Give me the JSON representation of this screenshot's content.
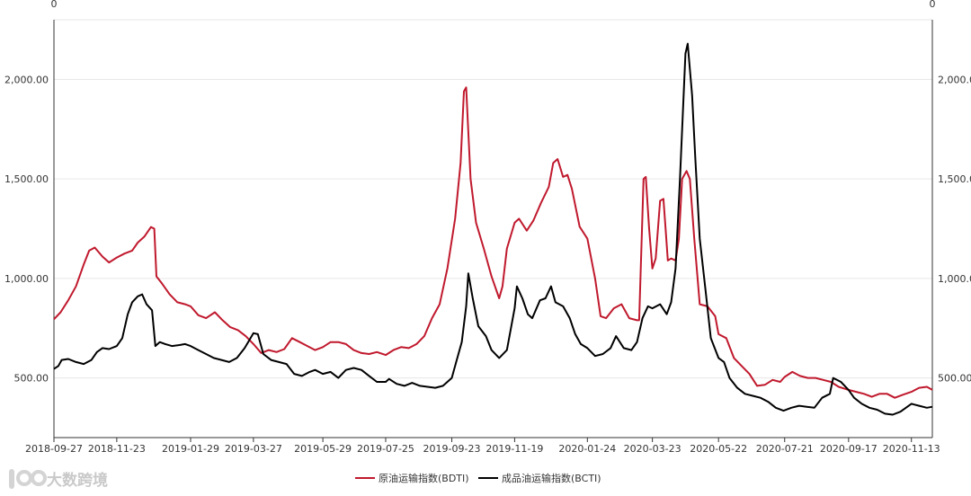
{
  "chart_data": {
    "type": "line",
    "title": "",
    "top_labels": {
      "left": "0",
      "right": "0"
    },
    "ylim": [
      200,
      2300
    ],
    "yticks": [
      {
        "value": 500,
        "label": "500.00"
      },
      {
        "value": 1000,
        "label": "1,000.00"
      },
      {
        "value": 1500,
        "label": "1,500.00"
      },
      {
        "value": 2000,
        "label": "2,000.00"
      }
    ],
    "xlim": [
      "2018-09-27",
      "2020-12-02"
    ],
    "xticks": [
      "2018-09-27",
      "2018-11-23",
      "2019-01-29",
      "2019-03-27",
      "2019-05-29",
      "2019-07-25",
      "2019-09-23",
      "2019-11-19",
      "2020-01-24",
      "2020-03-23",
      "2020-05-22",
      "2020-07-21",
      "2020-09-17",
      "2020-11-13"
    ],
    "grid": true,
    "legend_position": "bottom-center",
    "series": [
      {
        "name": "原油运输指数(BDTI)",
        "color": "#c0192d",
        "points": [
          [
            "2018-09-27",
            795
          ],
          [
            "2018-10-03",
            830
          ],
          [
            "2018-10-10",
            890
          ],
          [
            "2018-10-17",
            960
          ],
          [
            "2018-10-24",
            1070
          ],
          [
            "2018-10-29",
            1140
          ],
          [
            "2018-11-03",
            1155
          ],
          [
            "2018-11-10",
            1110
          ],
          [
            "2018-11-16",
            1080
          ],
          [
            "2018-11-23",
            1105
          ],
          [
            "2018-11-30",
            1125
          ],
          [
            "2018-12-07",
            1140
          ],
          [
            "2018-12-12",
            1180
          ],
          [
            "2018-12-18",
            1210
          ],
          [
            "2018-12-24",
            1258
          ],
          [
            "2018-12-27",
            1250
          ],
          [
            "2018-12-29",
            1010
          ],
          [
            "2019-01-03",
            975
          ],
          [
            "2019-01-10",
            920
          ],
          [
            "2019-01-17",
            880
          ],
          [
            "2019-01-24",
            870
          ],
          [
            "2019-01-29",
            860
          ],
          [
            "2019-02-05",
            815
          ],
          [
            "2019-02-12",
            800
          ],
          [
            "2019-02-20",
            830
          ],
          [
            "2019-02-27",
            790
          ],
          [
            "2019-03-06",
            755
          ],
          [
            "2019-03-13",
            740
          ],
          [
            "2019-03-20",
            710
          ],
          [
            "2019-03-27",
            670
          ],
          [
            "2019-04-03",
            625
          ],
          [
            "2019-04-10",
            640
          ],
          [
            "2019-04-17",
            630
          ],
          [
            "2019-04-24",
            645
          ],
          [
            "2019-05-01",
            700
          ],
          [
            "2019-05-08",
            680
          ],
          [
            "2019-05-15",
            660
          ],
          [
            "2019-05-22",
            640
          ],
          [
            "2019-05-29",
            655
          ],
          [
            "2019-06-05",
            680
          ],
          [
            "2019-06-12",
            680
          ],
          [
            "2019-06-19",
            670
          ],
          [
            "2019-06-26",
            640
          ],
          [
            "2019-07-03",
            625
          ],
          [
            "2019-07-10",
            620
          ],
          [
            "2019-07-17",
            630
          ],
          [
            "2019-07-25",
            615
          ],
          [
            "2019-08-01",
            640
          ],
          [
            "2019-08-08",
            655
          ],
          [
            "2019-08-15",
            650
          ],
          [
            "2019-08-22",
            670
          ],
          [
            "2019-08-29",
            710
          ],
          [
            "2019-09-05",
            800
          ],
          [
            "2019-09-12",
            870
          ],
          [
            "2019-09-19",
            1050
          ],
          [
            "2019-09-26",
            1300
          ],
          [
            "2019-10-01",
            1580
          ],
          [
            "2019-10-04",
            1940
          ],
          [
            "2019-10-06",
            1960
          ],
          [
            "2019-10-10",
            1500
          ],
          [
            "2019-10-15",
            1280
          ],
          [
            "2019-10-22",
            1150
          ],
          [
            "2019-10-29",
            1010
          ],
          [
            "2019-11-05",
            900
          ],
          [
            "2019-11-08",
            960
          ],
          [
            "2019-11-12",
            1150
          ],
          [
            "2019-11-19",
            1280
          ],
          [
            "2019-11-23",
            1300
          ],
          [
            "2019-11-30",
            1240
          ],
          [
            "2019-12-06",
            1290
          ],
          [
            "2019-12-13",
            1380
          ],
          [
            "2019-12-20",
            1460
          ],
          [
            "2019-12-24",
            1580
          ],
          [
            "2019-12-28",
            1600
          ],
          [
            "2020-01-02",
            1510
          ],
          [
            "2020-01-06",
            1520
          ],
          [
            "2020-01-10",
            1450
          ],
          [
            "2020-01-17",
            1260
          ],
          [
            "2020-01-24",
            1200
          ],
          [
            "2020-01-31",
            1000
          ],
          [
            "2020-02-05",
            810
          ],
          [
            "2020-02-10",
            800
          ],
          [
            "2020-02-17",
            850
          ],
          [
            "2020-02-24",
            870
          ],
          [
            "2020-03-02",
            800
          ],
          [
            "2020-03-09",
            790
          ],
          [
            "2020-03-11",
            790
          ],
          [
            "2020-03-15",
            1500
          ],
          [
            "2020-03-17",
            1510
          ],
          [
            "2020-03-20",
            1250
          ],
          [
            "2020-03-23",
            1050
          ],
          [
            "2020-03-26",
            1100
          ],
          [
            "2020-03-30",
            1390
          ],
          [
            "2020-04-02",
            1400
          ],
          [
            "2020-04-04",
            1250
          ],
          [
            "2020-04-06",
            1090
          ],
          [
            "2020-04-09",
            1100
          ],
          [
            "2020-04-13",
            1090
          ],
          [
            "2020-04-16",
            1200
          ],
          [
            "2020-04-19",
            1500
          ],
          [
            "2020-04-23",
            1540
          ],
          [
            "2020-04-26",
            1500
          ],
          [
            "2020-04-30",
            1200
          ],
          [
            "2020-05-05",
            870
          ],
          [
            "2020-05-12",
            860
          ],
          [
            "2020-05-19",
            810
          ],
          [
            "2020-05-22",
            720
          ],
          [
            "2020-05-29",
            700
          ],
          [
            "2020-06-05",
            600
          ],
          [
            "2020-06-12",
            560
          ],
          [
            "2020-06-19",
            520
          ],
          [
            "2020-06-26",
            460
          ],
          [
            "2020-07-03",
            465
          ],
          [
            "2020-07-10",
            490
          ],
          [
            "2020-07-17",
            480
          ],
          [
            "2020-07-21",
            505
          ],
          [
            "2020-07-28",
            530
          ],
          [
            "2020-08-04",
            510
          ],
          [
            "2020-08-11",
            500
          ],
          [
            "2020-08-18",
            500
          ],
          [
            "2020-08-25",
            490
          ],
          [
            "2020-09-01",
            480
          ],
          [
            "2020-09-08",
            455
          ],
          [
            "2020-09-17",
            440
          ],
          [
            "2020-09-24",
            430
          ],
          [
            "2020-10-01",
            420
          ],
          [
            "2020-10-08",
            405
          ],
          [
            "2020-10-15",
            420
          ],
          [
            "2020-10-22",
            420
          ],
          [
            "2020-10-29",
            400
          ],
          [
            "2020-11-05",
            415
          ],
          [
            "2020-11-13",
            430
          ],
          [
            "2020-11-20",
            450
          ],
          [
            "2020-11-27",
            455
          ],
          [
            "2020-12-02",
            440
          ]
        ]
      },
      {
        "name": "成品油运输指数(BCTI)",
        "color": "#000000",
        "points": [
          [
            "2018-09-27",
            545
          ],
          [
            "2018-10-01",
            560
          ],
          [
            "2018-10-04",
            590
          ],
          [
            "2018-10-10",
            595
          ],
          [
            "2018-10-17",
            580
          ],
          [
            "2018-10-24",
            570
          ],
          [
            "2018-10-31",
            590
          ],
          [
            "2018-11-05",
            630
          ],
          [
            "2018-11-10",
            650
          ],
          [
            "2018-11-16",
            645
          ],
          [
            "2018-11-23",
            660
          ],
          [
            "2018-11-28",
            700
          ],
          [
            "2018-12-03",
            820
          ],
          [
            "2018-12-07",
            880
          ],
          [
            "2018-12-12",
            910
          ],
          [
            "2018-12-16",
            920
          ],
          [
            "2018-12-20",
            870
          ],
          [
            "2018-12-25",
            840
          ],
          [
            "2018-12-28",
            660
          ],
          [
            "2019-01-01",
            680
          ],
          [
            "2019-01-06",
            670
          ],
          [
            "2019-01-12",
            660
          ],
          [
            "2019-01-19",
            665
          ],
          [
            "2019-01-24",
            670
          ],
          [
            "2019-01-29",
            660
          ],
          [
            "2019-02-05",
            640
          ],
          [
            "2019-02-12",
            620
          ],
          [
            "2019-02-19",
            600
          ],
          [
            "2019-02-26",
            590
          ],
          [
            "2019-03-05",
            580
          ],
          [
            "2019-03-12",
            600
          ],
          [
            "2019-03-19",
            650
          ],
          [
            "2019-03-27",
            725
          ],
          [
            "2019-03-31",
            720
          ],
          [
            "2019-04-05",
            620
          ],
          [
            "2019-04-12",
            590
          ],
          [
            "2019-04-19",
            580
          ],
          [
            "2019-04-26",
            570
          ],
          [
            "2019-05-03",
            520
          ],
          [
            "2019-05-10",
            510
          ],
          [
            "2019-05-17",
            530
          ],
          [
            "2019-05-22",
            540
          ],
          [
            "2019-05-29",
            520
          ],
          [
            "2019-06-05",
            530
          ],
          [
            "2019-06-12",
            500
          ],
          [
            "2019-06-19",
            540
          ],
          [
            "2019-06-26",
            550
          ],
          [
            "2019-07-03",
            540
          ],
          [
            "2019-07-10",
            510
          ],
          [
            "2019-07-17",
            480
          ],
          [
            "2019-07-25",
            480
          ],
          [
            "2019-07-28",
            495
          ],
          [
            "2019-08-04",
            470
          ],
          [
            "2019-08-11",
            460
          ],
          [
            "2019-08-18",
            475
          ],
          [
            "2019-08-25",
            460
          ],
          [
            "2019-09-01",
            455
          ],
          [
            "2019-09-08",
            450
          ],
          [
            "2019-09-15",
            460
          ],
          [
            "2019-09-19",
            480
          ],
          [
            "2019-09-23",
            500
          ],
          [
            "2019-09-27",
            580
          ],
          [
            "2019-10-02",
            680
          ],
          [
            "2019-10-06",
            860
          ],
          [
            "2019-10-08",
            1025
          ],
          [
            "2019-10-12",
            900
          ],
          [
            "2019-10-17",
            760
          ],
          [
            "2019-10-24",
            710
          ],
          [
            "2019-10-29",
            640
          ],
          [
            "2019-11-05",
            600
          ],
          [
            "2019-11-12",
            640
          ],
          [
            "2019-11-19",
            850
          ],
          [
            "2019-11-21",
            960
          ],
          [
            "2019-11-26",
            900
          ],
          [
            "2019-12-01",
            820
          ],
          [
            "2019-12-05",
            800
          ],
          [
            "2019-12-12",
            890
          ],
          [
            "2019-12-17",
            900
          ],
          [
            "2019-12-22",
            960
          ],
          [
            "2019-12-26",
            880
          ],
          [
            "2020-01-02",
            860
          ],
          [
            "2020-01-08",
            800
          ],
          [
            "2020-01-13",
            720
          ],
          [
            "2020-01-18",
            670
          ],
          [
            "2020-01-24",
            650
          ],
          [
            "2020-01-31",
            610
          ],
          [
            "2020-02-07",
            620
          ],
          [
            "2020-02-14",
            650
          ],
          [
            "2020-02-19",
            710
          ],
          [
            "2020-02-26",
            650
          ],
          [
            "2020-03-04",
            640
          ],
          [
            "2020-03-09",
            680
          ],
          [
            "2020-03-14",
            800
          ],
          [
            "2020-03-19",
            860
          ],
          [
            "2020-03-23",
            850
          ],
          [
            "2020-03-30",
            870
          ],
          [
            "2020-04-05",
            820
          ],
          [
            "2020-04-09",
            880
          ],
          [
            "2020-04-13",
            1050
          ],
          [
            "2020-04-17",
            1500
          ],
          [
            "2020-04-22",
            2130
          ],
          [
            "2020-04-24",
            2180
          ],
          [
            "2020-04-28",
            1920
          ],
          [
            "2020-05-01",
            1600
          ],
          [
            "2020-05-05",
            1200
          ],
          [
            "2020-05-10",
            950
          ],
          [
            "2020-05-15",
            700
          ],
          [
            "2020-05-22",
            600
          ],
          [
            "2020-05-27",
            580
          ],
          [
            "2020-06-01",
            500
          ],
          [
            "2020-06-08",
            450
          ],
          [
            "2020-06-15",
            420
          ],
          [
            "2020-06-22",
            410
          ],
          [
            "2020-06-29",
            400
          ],
          [
            "2020-07-06",
            380
          ],
          [
            "2020-07-13",
            350
          ],
          [
            "2020-07-20",
            335
          ],
          [
            "2020-07-27",
            350
          ],
          [
            "2020-08-03",
            360
          ],
          [
            "2020-08-10",
            355
          ],
          [
            "2020-08-17",
            350
          ],
          [
            "2020-08-24",
            400
          ],
          [
            "2020-08-31",
            420
          ],
          [
            "2020-09-03",
            500
          ],
          [
            "2020-09-10",
            480
          ],
          [
            "2020-09-17",
            440
          ],
          [
            "2020-09-22",
            400
          ],
          [
            "2020-09-29",
            370
          ],
          [
            "2020-10-06",
            350
          ],
          [
            "2020-10-13",
            340
          ],
          [
            "2020-10-20",
            320
          ],
          [
            "2020-10-27",
            315
          ],
          [
            "2020-11-03",
            330
          ],
          [
            "2020-11-13",
            370
          ],
          [
            "2020-11-20",
            360
          ],
          [
            "2020-11-27",
            350
          ],
          [
            "2020-12-02",
            355
          ]
        ]
      }
    ]
  },
  "watermark": "大数跨境"
}
